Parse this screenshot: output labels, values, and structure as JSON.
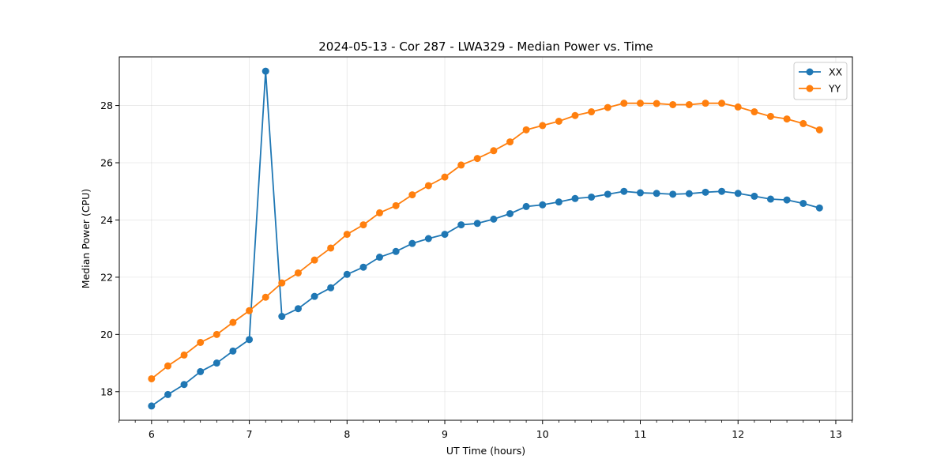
{
  "chart_data": {
    "type": "line",
    "title": "2024-05-13 - Cor 287 - LWA329 - Median Power vs. Time",
    "xlabel": "UT Time (hours)",
    "ylabel": "Median Power (CPU)",
    "xlim": [
      5.67,
      13.17
    ],
    "ylim": [
      17.0,
      29.7
    ],
    "xticks": [
      6,
      7,
      8,
      9,
      10,
      11,
      12,
      13
    ],
    "xticks_minor": [
      5.667,
      5.833,
      6.167,
      6.333,
      6.5,
      6.667,
      6.833,
      7.167,
      7.333,
      7.5,
      7.667,
      7.833,
      8.167,
      8.333,
      8.5,
      8.667,
      8.833,
      9.167,
      9.333,
      9.5,
      9.667,
      9.833,
      10.167,
      10.333,
      10.5,
      10.667,
      10.833,
      11.167,
      11.333,
      11.5,
      11.667,
      11.833,
      12.167,
      12.333,
      12.5,
      12.667,
      12.833,
      13.167
    ],
    "yticks": [
      18,
      20,
      22,
      24,
      26,
      28
    ],
    "grid": true,
    "legend_position": "top-right",
    "x": [
      6.0,
      6.167,
      6.333,
      6.5,
      6.667,
      6.833,
      7.0,
      7.167,
      7.333,
      7.5,
      7.667,
      7.833,
      8.0,
      8.167,
      8.333,
      8.5,
      8.667,
      8.833,
      9.0,
      9.167,
      9.333,
      9.5,
      9.667,
      9.833,
      10.0,
      10.167,
      10.333,
      10.5,
      10.667,
      10.833,
      11.0,
      11.167,
      11.333,
      11.5,
      11.667,
      11.833,
      12.0,
      12.167,
      12.333,
      12.5,
      12.667,
      12.833
    ],
    "series": [
      {
        "name": "XX",
        "color": "#1f77b4",
        "values": [
          17.5,
          17.9,
          18.25,
          18.7,
          19.0,
          19.42,
          19.82,
          29.2,
          20.63,
          20.9,
          21.33,
          21.63,
          22.1,
          22.35,
          22.7,
          22.9,
          23.18,
          23.35,
          23.5,
          23.83,
          23.88,
          24.03,
          24.22,
          24.47,
          24.53,
          24.63,
          24.75,
          24.8,
          24.9,
          25.0,
          24.95,
          24.93,
          24.9,
          24.92,
          24.97,
          25.0,
          24.93,
          24.83,
          24.73,
          24.7,
          24.58,
          24.42
        ]
      },
      {
        "name": "YY",
        "color": "#ff7f0e",
        "values": [
          18.45,
          18.9,
          19.28,
          19.72,
          20.0,
          20.42,
          20.83,
          21.3,
          21.8,
          22.15,
          22.6,
          23.02,
          23.5,
          23.83,
          24.25,
          24.5,
          24.88,
          25.2,
          25.5,
          25.92,
          26.15,
          26.42,
          26.73,
          27.15,
          27.3,
          27.45,
          27.65,
          27.78,
          27.93,
          28.08,
          28.08,
          28.07,
          28.03,
          28.03,
          28.08,
          28.08,
          27.95,
          27.78,
          27.62,
          27.53,
          27.37,
          27.15
        ]
      }
    ]
  }
}
